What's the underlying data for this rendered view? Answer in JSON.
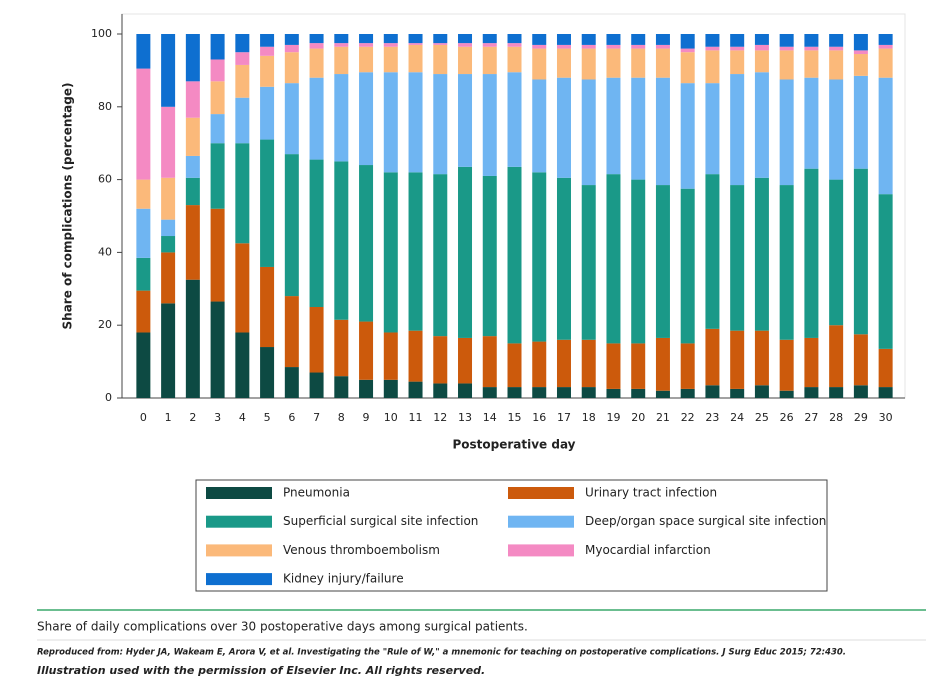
{
  "chart_data": {
    "type": "stacked_bar",
    "x_label": "Postoperative day",
    "y_label": "Share of complications (percentage)",
    "categories": [
      "0",
      "1",
      "2",
      "3",
      "4",
      "5",
      "6",
      "7",
      "8",
      "9",
      "10",
      "11",
      "12",
      "13",
      "14",
      "15",
      "16",
      "17",
      "18",
      "19",
      "20",
      "21",
      "22",
      "23",
      "24",
      "25",
      "26",
      "27",
      "28",
      "29",
      "30"
    ],
    "ylim": [
      0,
      100
    ],
    "yticks": [
      0,
      20,
      40,
      60,
      80,
      100
    ],
    "grid": false,
    "legend": "bottom",
    "series": [
      {
        "name": "Pneumonia",
        "color": "#0d4a43",
        "values": [
          18,
          26,
          32.5,
          26.5,
          18,
          14,
          8.5,
          7,
          6,
          5,
          5,
          4.5,
          4,
          4,
          3,
          3,
          3,
          3,
          3,
          2.5,
          2.5,
          2,
          2.5,
          3.5,
          2.5,
          3.5,
          2,
          3,
          3,
          3.5,
          3
        ]
      },
      {
        "name": "Urinary tract infection",
        "color": "#cc5a0c",
        "values": [
          11.5,
          14,
          20.5,
          25.5,
          24.5,
          22,
          19.5,
          18,
          15.5,
          16,
          13,
          14,
          13,
          12.5,
          14,
          12,
          12.5,
          13,
          13,
          12.5,
          12.5,
          14.5,
          12.5,
          15.5,
          16,
          15,
          14,
          13.5,
          17,
          14,
          10.5
        ]
      },
      {
        "name": "Superficial surgical site infection",
        "color": "#1a9988",
        "values": [
          9,
          4.5,
          7.5,
          18,
          27.5,
          35,
          39,
          40.5,
          43.5,
          43,
          44,
          43.5,
          44.5,
          47,
          44,
          48.5,
          46.5,
          44.5,
          42.5,
          46.5,
          45,
          42,
          42.5,
          42.5,
          40,
          42,
          42.5,
          46.5,
          40,
          45.5,
          42.5
        ]
      },
      {
        "name": "Deep/organ space surgical site infection",
        "color": "#6fb5f2",
        "values": [
          13.5,
          4.5,
          6,
          8,
          12.5,
          14.5,
          19.5,
          22.5,
          24,
          25.5,
          27.5,
          27.5,
          27.5,
          25.5,
          28,
          26,
          25.5,
          27.5,
          29,
          26.5,
          28,
          29.5,
          29,
          25,
          30.5,
          29,
          29,
          25,
          27.5,
          25.5,
          32
        ]
      },
      {
        "name": "Venous thromboembolism",
        "color": "#fbb97a",
        "values": [
          8,
          11.5,
          10.5,
          9,
          9,
          8.5,
          8.5,
          8,
          7.5,
          7,
          7,
          7.5,
          8,
          7.5,
          7.5,
          7,
          8.5,
          8,
          8.5,
          8,
          8,
          8,
          8.5,
          9,
          6.5,
          6,
          8,
          7.5,
          8,
          6,
          8
        ]
      },
      {
        "name": "Myocardial infarction",
        "color": "#f48ac3",
        "values": [
          30.5,
          19.5,
          10,
          6,
          3.5,
          2.5,
          2,
          1.5,
          1,
          1,
          1,
          0.5,
          0.5,
          1,
          1,
          1,
          1,
          1,
          1,
          1,
          1,
          1,
          1,
          1,
          1,
          1.5,
          1,
          1,
          1,
          1,
          1
        ]
      },
      {
        "name": "Kidney injury/failure",
        "color": "#0e6fd0",
        "values": [
          9.5,
          20,
          13,
          7,
          5,
          3.5,
          3,
          2.5,
          2.5,
          2.5,
          2.5,
          2.5,
          2.5,
          2.5,
          2.5,
          2.5,
          3,
          3,
          3,
          3,
          3,
          3,
          4,
          3.5,
          3.5,
          3,
          3.5,
          3.5,
          3.5,
          4.5,
          3
        ]
      }
    ]
  },
  "caption": "Share of daily complications over 30 postoperative days among surgical patients.",
  "source": "Reproduced from: Hyder JA, Wakeam E, Arora V, et al. Investigating the \"Rule of W,\" a mnemonic for teaching on postoperative complications. J Surg Educ 2015; 72:430.",
  "permission": "Illustration used with the permission of Elsevier Inc. All rights reserved."
}
